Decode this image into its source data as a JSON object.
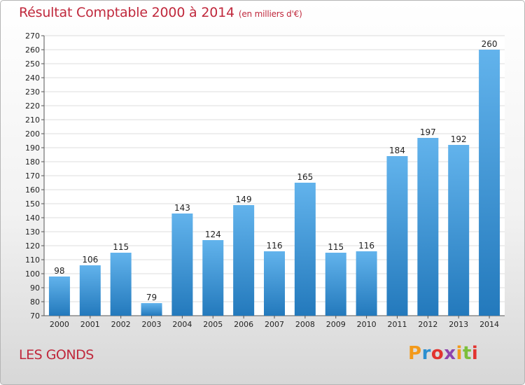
{
  "header": {
    "title": "Résultat Comptable 2000 à 2014",
    "subtitle": "(en milliers d'€)"
  },
  "footer": {
    "commune": "LES GONDS",
    "logo_text": "Proxiti"
  },
  "colors": {
    "bar_light": "#62b3ec",
    "bar_dark": "#2379bc",
    "title": "#c0283c"
  },
  "chart_data": {
    "type": "bar",
    "title": "Résultat Comptable 2000 à 2014",
    "subtitle": "(en milliers d'€)",
    "xlabel": "",
    "ylabel": "",
    "categories": [
      "2000",
      "2001",
      "2002",
      "2003",
      "2004",
      "2005",
      "2006",
      "2007",
      "2008",
      "2009",
      "2010",
      "2011",
      "2012",
      "2013",
      "2014"
    ],
    "values": [
      98,
      106,
      115,
      79,
      143,
      124,
      149,
      116,
      165,
      115,
      116,
      184,
      197,
      192,
      260
    ],
    "ylim": [
      70,
      270
    ],
    "ytick_step": 10,
    "grid": true
  }
}
